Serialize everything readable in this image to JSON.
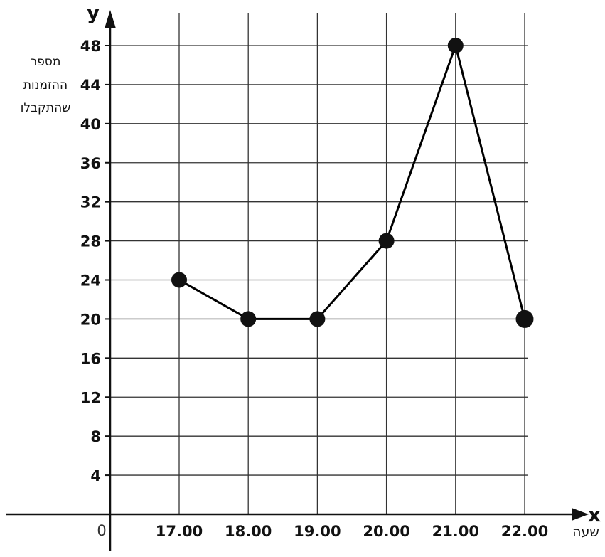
{
  "chart_data": {
    "type": "line",
    "x_letter": "x",
    "y_letter": "y",
    "xlabel": "שעה",
    "ylabel_lines": [
      "מספר",
      "ההזמנות",
      "שהתקבלו"
    ],
    "origin_label": "0",
    "categories": [
      "17.00",
      "18.00",
      "19.00",
      "20.00",
      "21.00",
      "22.00"
    ],
    "values": [
      24,
      20,
      20,
      28,
      48,
      20
    ],
    "y_ticks": [
      4,
      8,
      12,
      16,
      20,
      24,
      28,
      32,
      36,
      40,
      44,
      48
    ],
    "ylim": [
      0,
      48
    ],
    "grid": true,
    "colors": {
      "line": "#000000",
      "grid": "#333333",
      "marker": "#111111"
    }
  }
}
